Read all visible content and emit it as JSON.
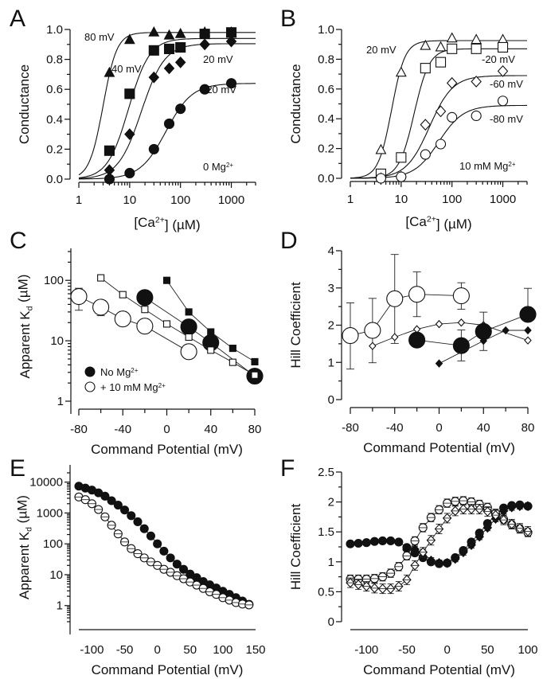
{
  "figure": {
    "panels": [
      "A",
      "B",
      "C",
      "D",
      "E",
      "F"
    ]
  },
  "chart_data": [
    {
      "panel": "A",
      "type": "scatter",
      "title": "",
      "xlabel": "[Ca2+] (µM)",
      "ylabel": "Conductance",
      "xscale": "log",
      "xlim": [
        1,
        3000
      ],
      "ylim": [
        0,
        1.0
      ],
      "xticks": [
        "1",
        "10",
        "100",
        "1000"
      ],
      "yticks": [
        "0.0",
        "0.2",
        "0.4",
        "0.6",
        "0.8",
        "1.0"
      ],
      "annotations": [
        "80 mV",
        "40 mV",
        "20 mV",
        "-20 mV",
        "0 Mg2+"
      ],
      "series": [
        {
          "name": "80 mV",
          "marker": "filled-triangle",
          "x": [
            4,
            10,
            30,
            60,
            100,
            300,
            1000
          ],
          "y": [
            0.71,
            0.93,
            0.98,
            0.96,
            0.97,
            0.98,
            0.98
          ],
          "fit": {
            "gmax": 0.98,
            "kd": 3.0,
            "n": 3.2
          }
        },
        {
          "name": "40 mV",
          "marker": "filled-square",
          "x": [
            4,
            10,
            30,
            60,
            100,
            300,
            1000
          ],
          "y": [
            0.19,
            0.57,
            0.86,
            0.87,
            0.88,
            0.97,
            0.98
          ],
          "fit": {
            "gmax": 0.94,
            "kd": 9.5,
            "n": 2.1
          }
        },
        {
          "name": "20 mV",
          "marker": "filled-diamond",
          "x": [
            4,
            10,
            30,
            60,
            100,
            300,
            1000
          ],
          "y": [
            0.06,
            0.3,
            0.68,
            0.74,
            0.78,
            0.9,
            0.92
          ],
          "fit": {
            "gmax": 0.905,
            "kd": 17,
            "n": 1.9
          }
        },
        {
          "name": "-20 mV",
          "marker": "filled-circle",
          "x": [
            4,
            10,
            30,
            60,
            100,
            300,
            1000
          ],
          "y": [
            0.0,
            0.04,
            0.2,
            0.37,
            0.47,
            0.6,
            0.64
          ],
          "fit": {
            "gmax": 0.64,
            "kd": 52,
            "n": 1.7
          }
        }
      ]
    },
    {
      "panel": "B",
      "type": "scatter",
      "title": "",
      "xlabel": "[Ca2+] (µM)",
      "ylabel": "Conductance",
      "xscale": "log",
      "xlim": [
        1,
        3000
      ],
      "ylim": [
        0,
        1.0
      ],
      "xticks": [
        "1",
        "10",
        "100",
        "1000"
      ],
      "yticks": [
        "0.0",
        "0.2",
        "0.4",
        "0.6",
        "0.8",
        "1.0"
      ],
      "annotations": [
        "20 mV",
        "-20 mV",
        "-60 mV",
        "-80 mV",
        "10 mM Mg2+"
      ],
      "series": [
        {
          "name": "20 mV",
          "marker": "open-triangle",
          "x": [
            4,
            10,
            30,
            60,
            100,
            300,
            1000
          ],
          "y": [
            0.19,
            0.71,
            0.89,
            0.88,
            0.94,
            0.93,
            0.93
          ],
          "fit": {
            "gmax": 0.925,
            "kd": 6.5,
            "n": 3.3
          }
        },
        {
          "name": "-20 mV",
          "marker": "open-square",
          "x": [
            4,
            10,
            30,
            60,
            100,
            300,
            1000
          ],
          "y": [
            0.03,
            0.14,
            0.74,
            0.78,
            0.87,
            0.87,
            0.88
          ],
          "fit": {
            "gmax": 0.87,
            "kd": 18,
            "n": 2.9
          }
        },
        {
          "name": "-60 mV",
          "marker": "open-diamond",
          "x": [
            4,
            10,
            30,
            60,
            100,
            300,
            1000
          ],
          "y": [
            0.0,
            0.01,
            0.36,
            0.45,
            0.64,
            0.65,
            0.72
          ],
          "fit": {
            "gmax": 0.69,
            "kd": 36,
            "n": 1.9
          }
        },
        {
          "name": "-80 mV",
          "marker": "open-circle",
          "x": [
            4,
            10,
            30,
            60,
            100,
            300,
            1000
          ],
          "y": [
            0.0,
            0.01,
            0.16,
            0.23,
            0.41,
            0.42,
            0.52
          ],
          "fit": {
            "gmax": 0.49,
            "kd": 55,
            "n": 1.8
          }
        }
      ]
    },
    {
      "panel": "C",
      "type": "line",
      "title": "",
      "xlabel": "Command Potential (mV)",
      "ylabel": "Apparent Kd (µM)",
      "yscale": "log",
      "xlim": [
        -80,
        80
      ],
      "ylim": [
        1,
        300
      ],
      "xticks": [
        "-80",
        "-40",
        "0",
        "40",
        "80"
      ],
      "yticks": [
        "1",
        "10",
        "100"
      ],
      "legend": {
        "position": "bottom-left",
        "entries": [
          "No Mg2+",
          "+ 10 mM Mg2+"
        ]
      },
      "series": [
        {
          "name": "No Mg2+ (large filled circles)",
          "marker": "filled-circle-large",
          "x": [
            -20,
            20,
            40,
            80
          ],
          "y": [
            52,
            17,
            9.3,
            2.6
          ]
        },
        {
          "name": "No Mg2+ (small filled squares)",
          "marker": "filled-square-small",
          "x": [
            0,
            20,
            40,
            60,
            80
          ],
          "y": [
            100,
            30,
            14,
            7.5,
            4.5
          ]
        },
        {
          "name": "+ 10 mM Mg2+ (large open circles)",
          "marker": "open-circle-large",
          "x": [
            -80,
            -60,
            -40,
            -20,
            20
          ],
          "y": [
            54,
            36,
            23,
            17.5,
            6.6
          ],
          "err_low": [
            32,
            26,
            19,
            15,
            6.0
          ],
          "err_high": [
            74,
            44,
            27,
            20,
            7.2
          ]
        },
        {
          "name": "+ 10 mM Mg2+ (small open squares)",
          "marker": "open-square-small",
          "x": [
            -60,
            -40,
            -20,
            0,
            20,
            40,
            60,
            80
          ],
          "y": [
            110,
            58,
            33,
            19,
            11.5,
            7.0,
            4.4,
            2.7
          ]
        }
      ]
    },
    {
      "panel": "D",
      "type": "line",
      "title": "",
      "xlabel": "Command Potential (mV)",
      "ylabel": "Hill Coefficient",
      "xlim": [
        -80,
        80
      ],
      "ylim": [
        0,
        4
      ],
      "xticks": [
        "-80",
        "-40",
        "0",
        "40",
        "80"
      ],
      "yticks": [
        "0",
        "1",
        "2",
        "3",
        "4"
      ],
      "series": [
        {
          "name": "+ 10 mM Mg2+ (large open circles)",
          "marker": "open-circle-large",
          "x": [
            -80,
            -60,
            -40,
            -20,
            20
          ],
          "y": [
            1.72,
            1.86,
            2.71,
            2.83,
            2.79
          ],
          "err_low": [
            0.82,
            0.99,
            1.51,
            2.23,
            2.43
          ],
          "err_high": [
            2.6,
            2.72,
            3.9,
            3.43,
            3.14
          ]
        },
        {
          "name": "+ 10 mM Mg2+ (small open diamonds)",
          "marker": "open-diamond-small",
          "x": [
            -60,
            -40,
            -20,
            0,
            20,
            40,
            80
          ],
          "y": [
            1.44,
            1.68,
            1.89,
            2.03,
            2.07,
            2.0,
            1.59
          ]
        },
        {
          "name": "No Mg2+ (large filled circles)",
          "marker": "filled-circle-large",
          "x": [
            -20,
            20,
            40,
            80
          ],
          "y": [
            1.6,
            1.45,
            1.83,
            2.29
          ],
          "err_low": [
            1.6,
            1.04,
            1.32,
            2.29
          ],
          "err_high": [
            1.6,
            1.87,
            2.35,
            2.99
          ]
        },
        {
          "name": "No Mg2+ (small filled diamonds)",
          "marker": "filled-diamond-small",
          "x": [
            0,
            40,
            60,
            80
          ],
          "y": [
            0.97,
            1.58,
            1.86,
            1.86
          ]
        }
      ]
    },
    {
      "panel": "E",
      "type": "line",
      "title": "",
      "xlabel": "Command Potential (mV)",
      "ylabel": "Apparent Kd (µM)",
      "yscale": "log",
      "xlim": [
        -120,
        150
      ],
      "ylim": [
        0.3,
        20000
      ],
      "xticks": [
        "-100",
        "-50",
        "0",
        "50",
        "100",
        "150"
      ],
      "yticks": [
        "1",
        "10",
        "100",
        "1000",
        "10000"
      ],
      "series": [
        {
          "name": "filled circles",
          "marker": "filled-circle",
          "x": [
            -120,
            -110,
            -100,
            -90,
            -80,
            -70,
            -60,
            -50,
            -40,
            -30,
            -20,
            -10,
            0,
            10,
            20,
            30,
            40,
            50,
            60,
            70,
            80,
            90,
            100,
            110,
            120,
            130,
            140
          ],
          "y": [
            7400,
            6400,
            5500,
            4500,
            3500,
            2500,
            1800,
            1250,
            820,
            520,
            310,
            180,
            100,
            58,
            35,
            22,
            15,
            10.5,
            8,
            6,
            4.7,
            3.7,
            2.9,
            2.3,
            1.8,
            1.4,
            1.1
          ]
        },
        {
          "name": "open circles",
          "marker": "open-circle-crossed",
          "x": [
            -120,
            -110,
            -100,
            -90,
            -80,
            -70,
            -60,
            -50,
            -40,
            -30,
            -20,
            -10,
            0,
            10,
            20,
            30,
            40,
            50,
            60,
            70,
            80,
            90,
            100,
            110,
            120,
            130,
            140
          ],
          "y": [
            3300,
            2700,
            2000,
            1300,
            750,
            400,
            210,
            115,
            70,
            48,
            35,
            26,
            20,
            15,
            12,
            9.3,
            7.4,
            5.8,
            4.6,
            3.6,
            2.8,
            2.3,
            1.8,
            1.5,
            1.25,
            1.12,
            1.05
          ]
        }
      ]
    },
    {
      "panel": "F",
      "type": "line",
      "title": "",
      "xlabel": "Command Potential (mV)",
      "ylabel": "Hill Coefficient",
      "xlim": [
        -120,
        100
      ],
      "ylim": [
        0,
        2.5
      ],
      "xticks": [
        "-100",
        "-50",
        "0",
        "50",
        "100"
      ],
      "yticks": [
        "0",
        "0.5",
        "1",
        "1.5",
        "2",
        "2.5"
      ],
      "series": [
        {
          "name": "filled circles",
          "marker": "filled-circle",
          "x": [
            -120,
            -110,
            -100,
            -90,
            -80,
            -70,
            -60,
            -50,
            -40,
            -30,
            -20,
            -10,
            0,
            10,
            20,
            30,
            40,
            50,
            60,
            70,
            80,
            90,
            100
          ],
          "y": [
            1.3,
            1.31,
            1.32,
            1.34,
            1.35,
            1.35,
            1.33,
            1.24,
            1.15,
            1.07,
            1.0,
            0.97,
            0.98,
            1.07,
            1.19,
            1.33,
            1.48,
            1.64,
            1.79,
            1.9,
            1.94,
            1.95,
            1.93
          ],
          "err": 0.04
        },
        {
          "name": "filled diamonds",
          "marker": "filled-diamond",
          "x": [
            -50,
            -40,
            -30,
            -20,
            -10,
            0,
            10,
            20,
            30,
            40,
            50,
            60,
            70,
            80,
            90,
            100
          ],
          "y": [
            1.2,
            1.21,
            1.16,
            1.02,
            0.98,
            0.98,
            1.05,
            1.16,
            1.28,
            1.42,
            1.57,
            1.72,
            1.85,
            1.91,
            1.93,
            1.93
          ],
          "err": 0.05
        },
        {
          "name": "open circles",
          "marker": "open-circle-crossed",
          "x": [
            -120,
            -110,
            -100,
            -90,
            -80,
            -70,
            -60,
            -50,
            -40,
            -30,
            -20,
            -10,
            0,
            10,
            20,
            30,
            40,
            50,
            60,
            70,
            80,
            90,
            100
          ],
          "y": [
            0.71,
            0.71,
            0.71,
            0.72,
            0.75,
            0.81,
            0.92,
            1.1,
            1.35,
            1.57,
            1.74,
            1.87,
            1.98,
            2.01,
            2.02,
            2.0,
            1.96,
            1.91,
            1.81,
            1.71,
            1.62,
            1.55,
            1.49
          ],
          "err": 0.07
        },
        {
          "name": "open diamonds",
          "marker": "open-diamond-crossed",
          "x": [
            -120,
            -110,
            -100,
            -90,
            -80,
            -70,
            -60,
            -50,
            -40,
            -30,
            -20,
            -10,
            0,
            10,
            20,
            30,
            40,
            50,
            60,
            70,
            80,
            90,
            100
          ],
          "y": [
            0.65,
            0.62,
            0.59,
            0.56,
            0.55,
            0.55,
            0.59,
            0.7,
            0.94,
            1.16,
            1.36,
            1.55,
            1.73,
            1.85,
            1.88,
            1.88,
            1.88,
            1.84,
            1.78,
            1.7,
            1.63,
            1.56,
            1.51
          ],
          "err": 0.08
        }
      ]
    }
  ]
}
